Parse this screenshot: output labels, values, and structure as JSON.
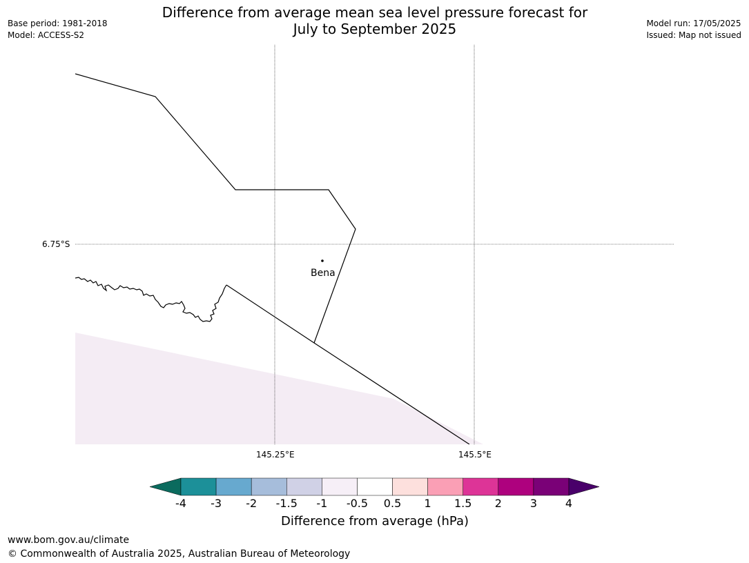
{
  "title_line1": "Difference from average mean sea level pressure forecast for",
  "title_line2": "July to September 2025",
  "meta_left": {
    "base_period": "Base period: 1981-2018",
    "model": "Model: ACCESS-S2"
  },
  "meta_right": {
    "model_run": "Model run: 17/05/2025",
    "issued": "Issued: Map not issued"
  },
  "map": {
    "lat_label": "6.75°S",
    "lon_labels": [
      "145.25°E",
      "145.5°E"
    ],
    "place_label": "Bena",
    "shading_color": "#f4ecf4",
    "line_color": "#000000"
  },
  "colorbar": {
    "label": "Difference from average (hPa)",
    "ticks": [
      "-4",
      "-3",
      "-2",
      "-1.5",
      "-1",
      "-0.5",
      "0.5",
      "1",
      "1.5",
      "2",
      "3",
      "4"
    ],
    "colors": [
      "#0b6b5e",
      "#1c9099",
      "#67a9cf",
      "#a6bddb",
      "#d0d1e6",
      "#f6eff7",
      "#ffffff",
      "#fde0dd",
      "#fa9fb5",
      "#dd3497",
      "#ae017e",
      "#7a0177",
      "#49006a"
    ]
  },
  "footer": {
    "url": "www.bom.gov.au/climate",
    "copyright": "© Commonwealth of Australia 2025, Australian Bureau of Meteorology"
  }
}
